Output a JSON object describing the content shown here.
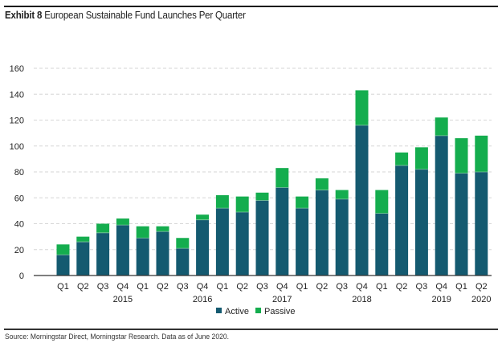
{
  "title": {
    "exhibit": "Exhibit 8",
    "text": "European Sustainable Fund Launches Per Quarter"
  },
  "source": "Source: Morningstar Direct, Morningstar Research. Data as of June 2020.",
  "colors": {
    "active": "#145a70",
    "passive": "#14ad4e",
    "grid": "#d6d6d6",
    "axis": "#333333"
  },
  "chart_data": {
    "type": "bar",
    "stacked": true,
    "title": "Exhibit 8 European Sustainable Fund Launches Per Quarter",
    "xlabel": "",
    "ylabel": "",
    "ylim": [
      0,
      160
    ],
    "yticks": [
      0,
      20,
      40,
      60,
      80,
      100,
      120,
      140,
      160
    ],
    "grid": true,
    "legend": {
      "placement": "bottom-center",
      "entries": [
        "Active",
        "Passive"
      ]
    },
    "categories": [
      "Q1 2015",
      "Q2 2015",
      "Q3 2015",
      "Q4 2015",
      "Q1 2016",
      "Q2 2016",
      "Q3 2016",
      "Q4 2016",
      "Q1 2017",
      "Q2 2017",
      "Q3 2017",
      "Q4 2017",
      "Q1 2018",
      "Q2 2018",
      "Q3 2018",
      "Q4 2018",
      "Q1 2019",
      "Q2 2019",
      "Q3 2019",
      "Q4 2019",
      "Q1 2020",
      "Q2 2020"
    ],
    "quarter_labels": [
      "Q1",
      "Q2",
      "Q3",
      "Q4",
      "Q1",
      "Q2",
      "Q3",
      "Q4",
      "Q1",
      "Q2",
      "Q3",
      "Q4",
      "Q1",
      "Q2",
      "Q3",
      "Q4",
      "Q1",
      "Q2",
      "Q3",
      "Q4",
      "Q1",
      "Q2"
    ],
    "year_labels": [
      "",
      "",
      "",
      "2015",
      "",
      "",
      "",
      "2016",
      "",
      "",
      "",
      "2017",
      "",
      "",
      "",
      "2018",
      "",
      "",
      "",
      "2019",
      "",
      "2020"
    ],
    "series": [
      {
        "name": "Active",
        "values": [
          16,
          26,
          33,
          39,
          29,
          34,
          21,
          43,
          52,
          49,
          58,
          68,
          52,
          66,
          59,
          116,
          48,
          85,
          82,
          108,
          79,
          80
        ]
      },
      {
        "name": "Passive",
        "values": [
          8,
          4,
          7,
          5,
          9,
          4,
          8,
          4,
          10,
          12,
          6,
          15,
          9,
          9,
          7,
          27,
          18,
          10,
          17,
          14,
          27,
          28
        ]
      }
    ]
  }
}
